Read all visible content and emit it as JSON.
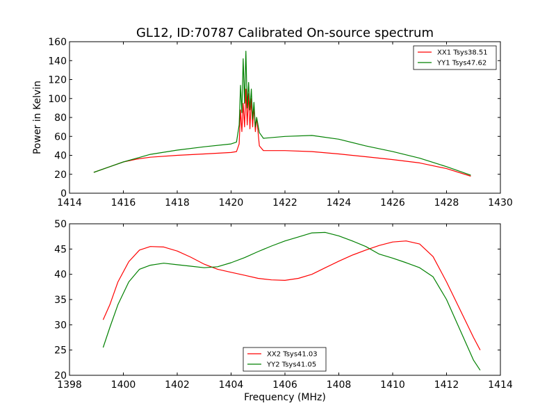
{
  "title": "GL12, ID:70787 Calibrated On-source spectrum",
  "colors": {
    "xx": "#ff0000",
    "yy": "#008000"
  },
  "chart_data": [
    {
      "type": "line",
      "title": "GL12, ID:70787 Calibrated On-source spectrum",
      "xlabel": "",
      "ylabel": "Power in Kelvin",
      "xlim": [
        1414,
        1430
      ],
      "ylim": [
        0,
        160
      ],
      "xticks": [
        1414,
        1416,
        1418,
        1420,
        1422,
        1424,
        1426,
        1428,
        1430
      ],
      "yticks": [
        0,
        20,
        40,
        60,
        80,
        100,
        120,
        140,
        160
      ],
      "grid": false,
      "legend": "top-right",
      "series": [
        {
          "name": "XX1 Tsys38.51",
          "color": "#ff0000",
          "x": [
            1414.9,
            1415.5,
            1416,
            1416.5,
            1417,
            1418,
            1419,
            1420,
            1420.2,
            1420.3,
            1420.35,
            1420.4,
            1420.45,
            1420.5,
            1420.55,
            1420.6,
            1420.65,
            1420.7,
            1420.75,
            1420.8,
            1420.85,
            1420.9,
            1420.95,
            1421.05,
            1421.2,
            1422,
            1423,
            1424,
            1425,
            1426,
            1427,
            1428,
            1428.9
          ],
          "y": [
            22,
            28,
            33,
            36,
            38,
            40,
            41.5,
            43,
            44,
            52,
            88,
            65,
            95,
            70,
            110,
            72,
            105,
            68,
            100,
            70,
            92,
            65,
            80,
            50,
            45,
            45,
            44,
            41.5,
            38.5,
            35.5,
            32,
            26,
            18
          ]
        },
        {
          "name": "YY1 Tsys47.62",
          "color": "#008000",
          "x": [
            1414.9,
            1415.5,
            1416,
            1416.5,
            1417,
            1418,
            1419,
            1420,
            1420.2,
            1420.3,
            1420.35,
            1420.4,
            1420.45,
            1420.5,
            1420.55,
            1420.6,
            1420.65,
            1420.7,
            1420.75,
            1420.8,
            1420.85,
            1420.9,
            1420.95,
            1421.05,
            1421.2,
            1422,
            1423,
            1424,
            1425,
            1426,
            1427,
            1428,
            1428.9
          ],
          "y": [
            22,
            28,
            33,
            37,
            41,
            45.5,
            49,
            52,
            54,
            72,
            114,
            85,
            142,
            95,
            150,
            90,
            117,
            88,
            110,
            78,
            96,
            70,
            80,
            64,
            58,
            60,
            61,
            57,
            50,
            44,
            37,
            28,
            19
          ]
        }
      ]
    },
    {
      "type": "line",
      "title": "",
      "xlabel": "Frequency (MHz)",
      "ylabel": "",
      "xlim": [
        1398,
        1414
      ],
      "ylim": [
        20,
        50
      ],
      "xticks": [
        1398,
        1400,
        1402,
        1404,
        1406,
        1408,
        1410,
        1412,
        1414
      ],
      "yticks": [
        20,
        25,
        30,
        35,
        40,
        45,
        50
      ],
      "grid": false,
      "legend": "bottom-center",
      "series": [
        {
          "name": "XX2 Tsys41.03",
          "color": "#ff0000",
          "x": [
            1399.25,
            1399.5,
            1399.8,
            1400.2,
            1400.6,
            1401,
            1401.5,
            1402,
            1402.5,
            1403,
            1403.5,
            1404,
            1404.5,
            1405,
            1405.5,
            1406,
            1406.5,
            1407,
            1407.5,
            1408,
            1408.5,
            1409,
            1409.5,
            1410,
            1410.5,
            1411,
            1411.5,
            1412,
            1412.5,
            1413,
            1413.25
          ],
          "y": [
            31,
            34,
            38.5,
            42.5,
            44.8,
            45.5,
            45.4,
            44.6,
            43.4,
            42,
            41,
            40.4,
            39.8,
            39.2,
            38.9,
            38.8,
            39.2,
            40,
            41.3,
            42.6,
            43.8,
            44.8,
            45.7,
            46.4,
            46.6,
            46,
            43.5,
            38.5,
            33,
            27.5,
            25
          ]
        },
        {
          "name": "YY2 Tsys41.05",
          "color": "#008000",
          "x": [
            1399.25,
            1399.5,
            1399.8,
            1400.2,
            1400.6,
            1401,
            1401.5,
            1402,
            1402.5,
            1403,
            1403.5,
            1404,
            1404.5,
            1405,
            1405.5,
            1406,
            1406.5,
            1407,
            1407.5,
            1408,
            1408.5,
            1409,
            1409.5,
            1410,
            1410.5,
            1411,
            1411.5,
            1412,
            1412.5,
            1413,
            1413.25
          ],
          "y": [
            25.5,
            29.5,
            34,
            38.5,
            41,
            41.8,
            42.2,
            41.9,
            41.6,
            41.3,
            41.5,
            42.3,
            43.3,
            44.5,
            45.6,
            46.6,
            47.4,
            48.2,
            48.3,
            47.6,
            46.6,
            45.5,
            44,
            43.2,
            42.3,
            41.3,
            39.5,
            35,
            29,
            23,
            21
          ]
        }
      ]
    }
  ]
}
